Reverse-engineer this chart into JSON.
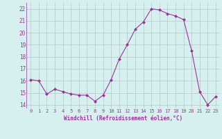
{
  "x": [
    0,
    1,
    2,
    3,
    4,
    5,
    6,
    7,
    8,
    9,
    10,
    11,
    12,
    13,
    14,
    15,
    16,
    17,
    18,
    19,
    20,
    21,
    22,
    23
  ],
  "y": [
    16.1,
    16.0,
    14.9,
    15.3,
    15.1,
    14.9,
    14.8,
    14.8,
    14.3,
    14.8,
    16.1,
    17.8,
    19.0,
    20.3,
    20.9,
    22.0,
    21.9,
    21.6,
    21.4,
    21.1,
    18.5,
    15.1,
    14.0,
    14.7
  ],
  "line_color": "#993399",
  "marker": "D",
  "marker_size": 2.0,
  "bg_color": "#d6f0f0",
  "grid_color": "#bbcccc",
  "xlabel": "Windchill (Refroidissement éolien,°C)",
  "ylabel_ticks": [
    14,
    15,
    16,
    17,
    18,
    19,
    20,
    21,
    22
  ],
  "xlim": [
    -0.5,
    23.5
  ],
  "ylim": [
    13.7,
    22.5
  ],
  "tick_color": "#993399",
  "label_color": "#993399",
  "tick_fontsize": 5.0,
  "xlabel_fontsize": 5.5
}
